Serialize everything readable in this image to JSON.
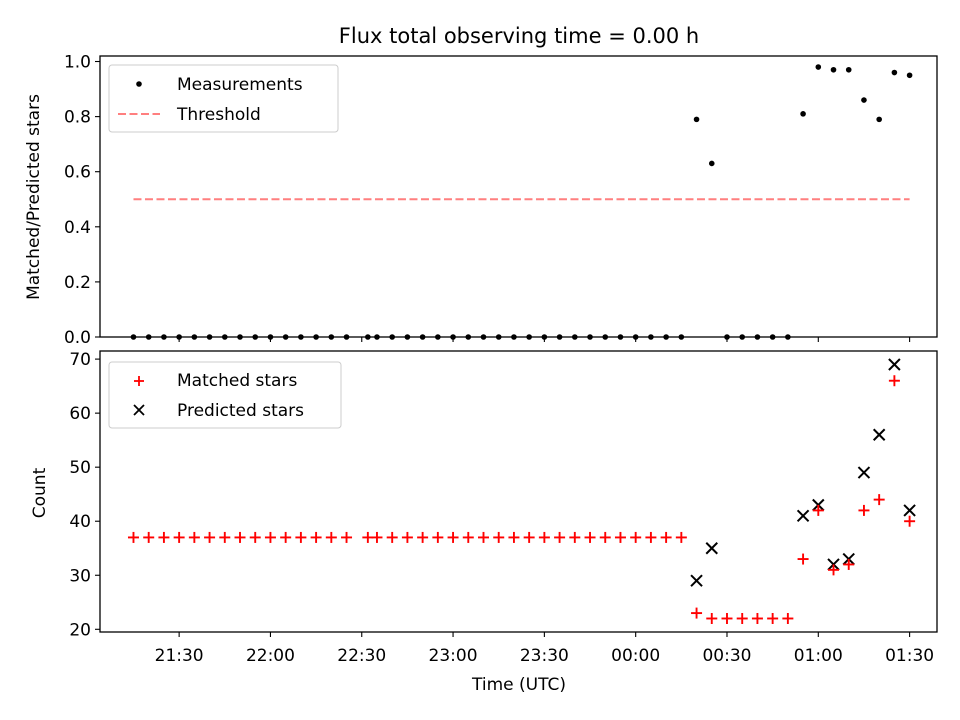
{
  "chart_data": [
    {
      "type": "scatter",
      "title": "Flux total observing time = 0.00 h",
      "ylabel": "Matched/Predicted stars",
      "ylim": [
        0,
        1.02
      ],
      "yticks": [
        "0.0",
        "0.2",
        "0.4",
        "0.6",
        "0.8",
        "1.0"
      ],
      "ytick_values": [
        0,
        0.2,
        0.4,
        0.6,
        0.8,
        1.0
      ],
      "legend": {
        "placement": "top-left",
        "entries": [
          "Measurements",
          "Threshold"
        ]
      },
      "threshold": {
        "name": "Threshold",
        "value": 0.5,
        "x_range": [
          "21:15",
          "01:30"
        ],
        "color": "#ff7f7f"
      },
      "series": [
        {
          "name": "Measurements",
          "color": "#000000",
          "points": [
            [
              "21:15",
              0
            ],
            [
              "21:20",
              0
            ],
            [
              "21:25",
              0
            ],
            [
              "21:30",
              0
            ],
            [
              "21:35",
              0
            ],
            [
              "21:40",
              0
            ],
            [
              "21:45",
              0
            ],
            [
              "21:50",
              0
            ],
            [
              "21:55",
              0
            ],
            [
              "22:00",
              0
            ],
            [
              "22:05",
              0
            ],
            [
              "22:10",
              0
            ],
            [
              "22:15",
              0
            ],
            [
              "22:20",
              0
            ],
            [
              "22:25",
              0
            ],
            [
              "22:32",
              0
            ],
            [
              "22:35",
              0
            ],
            [
              "22:40",
              0
            ],
            [
              "22:45",
              0
            ],
            [
              "22:50",
              0
            ],
            [
              "22:55",
              0
            ],
            [
              "23:00",
              0
            ],
            [
              "23:05",
              0
            ],
            [
              "23:10",
              0
            ],
            [
              "23:15",
              0
            ],
            [
              "23:20",
              0
            ],
            [
              "23:25",
              0
            ],
            [
              "23:30",
              0
            ],
            [
              "23:35",
              0
            ],
            [
              "23:40",
              0
            ],
            [
              "23:45",
              0
            ],
            [
              "23:50",
              0
            ],
            [
              "23:55",
              0
            ],
            [
              "00:00",
              0
            ],
            [
              "00:05",
              0
            ],
            [
              "00:10",
              0
            ],
            [
              "00:15",
              0
            ],
            [
              "00:20",
              0.79
            ],
            [
              "00:25",
              0.63
            ],
            [
              "00:30",
              0
            ],
            [
              "00:35",
              0
            ],
            [
              "00:40",
              0
            ],
            [
              "00:45",
              0
            ],
            [
              "00:50",
              0
            ],
            [
              "00:55",
              0.81
            ],
            [
              "01:00",
              0.98
            ],
            [
              "01:05",
              0.97
            ],
            [
              "01:10",
              0.97
            ],
            [
              "01:15",
              0.86
            ],
            [
              "01:20",
              0.79
            ],
            [
              "01:25",
              0.96
            ],
            [
              "01:30",
              0.95
            ]
          ]
        }
      ]
    },
    {
      "type": "scatter",
      "xlabel": "Time (UTC)",
      "ylabel": "Count",
      "ylim": [
        19.5,
        71.5
      ],
      "yticks": [
        "20",
        "30",
        "40",
        "50",
        "60",
        "70"
      ],
      "ytick_values": [
        20,
        30,
        40,
        50,
        60,
        70
      ],
      "xticks": [
        "21:30",
        "22:00",
        "22:30",
        "23:00",
        "23:30",
        "00:00",
        "00:30",
        "01:00",
        "01:30"
      ],
      "legend": {
        "placement": "top-left",
        "entries": [
          "Matched stars",
          "Predicted stars"
        ]
      },
      "series": [
        {
          "name": "Matched stars",
          "marker": "plus",
          "color": "#ff0000",
          "points": [
            [
              "21:15",
              37
            ],
            [
              "21:20",
              37
            ],
            [
              "21:25",
              37
            ],
            [
              "21:30",
              37
            ],
            [
              "21:35",
              37
            ],
            [
              "21:40",
              37
            ],
            [
              "21:45",
              37
            ],
            [
              "21:50",
              37
            ],
            [
              "21:55",
              37
            ],
            [
              "22:00",
              37
            ],
            [
              "22:05",
              37
            ],
            [
              "22:10",
              37
            ],
            [
              "22:15",
              37
            ],
            [
              "22:20",
              37
            ],
            [
              "22:25",
              37
            ],
            [
              "22:32",
              37
            ],
            [
              "22:35",
              37
            ],
            [
              "22:40",
              37
            ],
            [
              "22:45",
              37
            ],
            [
              "22:50",
              37
            ],
            [
              "22:55",
              37
            ],
            [
              "23:00",
              37
            ],
            [
              "23:05",
              37
            ],
            [
              "23:10",
              37
            ],
            [
              "23:15",
              37
            ],
            [
              "23:20",
              37
            ],
            [
              "23:25",
              37
            ],
            [
              "23:30",
              37
            ],
            [
              "23:35",
              37
            ],
            [
              "23:40",
              37
            ],
            [
              "23:45",
              37
            ],
            [
              "23:50",
              37
            ],
            [
              "23:55",
              37
            ],
            [
              "00:00",
              37
            ],
            [
              "00:05",
              37
            ],
            [
              "00:10",
              37
            ],
            [
              "00:15",
              37
            ],
            [
              "00:20",
              23
            ],
            [
              "00:25",
              22
            ],
            [
              "00:30",
              22
            ],
            [
              "00:35",
              22
            ],
            [
              "00:40",
              22
            ],
            [
              "00:45",
              22
            ],
            [
              "00:50",
              22
            ],
            [
              "00:55",
              33
            ],
            [
              "01:00",
              42
            ],
            [
              "01:05",
              31
            ],
            [
              "01:10",
              32
            ],
            [
              "01:15",
              42
            ],
            [
              "01:20",
              44
            ],
            [
              "01:25",
              66
            ],
            [
              "01:30",
              40
            ]
          ]
        },
        {
          "name": "Predicted stars",
          "marker": "x",
          "color": "#000000",
          "points": [
            [
              "00:20",
              29
            ],
            [
              "00:25",
              35
            ],
            [
              "00:55",
              41
            ],
            [
              "01:00",
              43
            ],
            [
              "01:05",
              32
            ],
            [
              "01:10",
              33
            ],
            [
              "01:15",
              49
            ],
            [
              "01:20",
              56
            ],
            [
              "01:25",
              69
            ],
            [
              "01:30",
              42
            ]
          ]
        }
      ]
    }
  ]
}
